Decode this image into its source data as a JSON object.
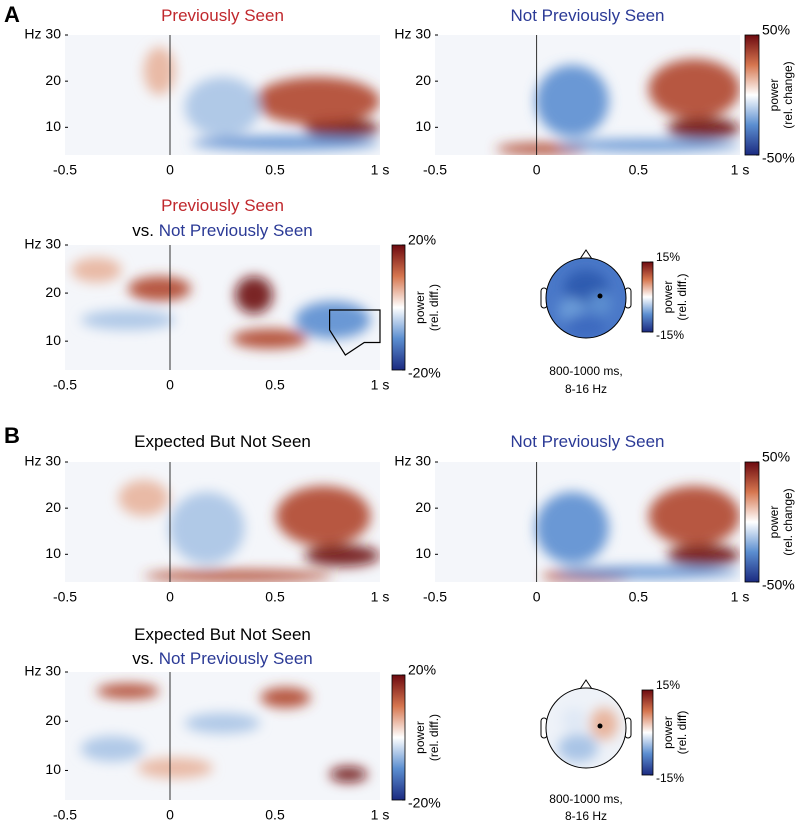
{
  "sections": [
    {
      "label": "A"
    },
    {
      "label": "B"
    }
  ],
  "chart_data": [
    {
      "type": "heatmap",
      "title_lines": [
        [
          {
            "text": "Previously Seen",
            "color": "#c0282d"
          }
        ]
      ],
      "xlim": [
        -0.5,
        1
      ],
      "xticks": [
        -0.5,
        0,
        0.5,
        {
          "value": 1,
          "label": "1 s"
        }
      ],
      "ylim": [
        4,
        30
      ],
      "yticks": [
        10,
        20,
        {
          "value": 30,
          "label": "Hz 30"
        }
      ]
    },
    {
      "type": "heatmap",
      "title_lines": [
        [
          {
            "text": "Not Previously Seen",
            "color": "#2b3a96"
          }
        ]
      ],
      "xlim": [
        -0.5,
        1
      ],
      "xticks": [
        -0.5,
        0,
        0.5,
        {
          "value": 1,
          "label": "1 s"
        }
      ],
      "ylim": [
        4,
        30
      ],
      "yticks": [
        10,
        20,
        {
          "value": 30,
          "label": "Hz 30"
        }
      ],
      "clim": [
        -50,
        50
      ],
      "cticks": [
        {
          "value": -50,
          "label": "-50%"
        },
        {
          "value": 50,
          "label": "50%"
        }
      ],
      "clabel": [
        "power",
        "(rel. change)"
      ]
    },
    {
      "type": "heatmap",
      "title_lines": [
        [
          {
            "text": "Previously Seen",
            "color": "#c0282d"
          }
        ],
        [
          {
            "text": "vs. ",
            "color": "#000000"
          },
          {
            "text": "Not Previously Seen",
            "color": "#2b3a96"
          }
        ]
      ],
      "xlim": [
        -0.5,
        1
      ],
      "xticks": [
        -0.5,
        0,
        0.5,
        {
          "value": 1,
          "label": "1 s"
        }
      ],
      "ylim": [
        4,
        30
      ],
      "yticks": [
        10,
        20,
        {
          "value": 30,
          "label": "Hz 30"
        }
      ],
      "clim": [
        -20,
        20
      ],
      "cticks": [
        {
          "value": -20,
          "label": "-20%"
        },
        {
          "value": 20,
          "label": "20%"
        }
      ],
      "clabel": [
        "power",
        "(rel. diff.)"
      ]
    },
    {
      "type": "topoplot",
      "clim": [
        -15,
        15
      ],
      "cticks": [
        {
          "value": -15,
          "label": "-15%"
        },
        {
          "value": 15,
          "label": "15%"
        }
      ],
      "clabel": [
        "power",
        "(rel. diff.)"
      ],
      "caption": [
        "800-1000 ms,",
        "8-16 Hz"
      ]
    },
    {
      "type": "heatmap",
      "title_lines": [
        [
          {
            "text": "Expected But Not Seen",
            "color": "#000000"
          }
        ]
      ],
      "xlim": [
        -0.5,
        1
      ],
      "xticks": [
        -0.5,
        0,
        0.5,
        {
          "value": 1,
          "label": "1 s"
        }
      ],
      "ylim": [
        4,
        30
      ],
      "yticks": [
        10,
        20,
        {
          "value": 30,
          "label": "Hz 30"
        }
      ]
    },
    {
      "type": "heatmap",
      "title_lines": [
        [
          {
            "text": "Not Previously Seen",
            "color": "#2b3a96"
          }
        ]
      ],
      "xlim": [
        -0.5,
        1
      ],
      "xticks": [
        -0.5,
        0,
        0.5,
        {
          "value": 1,
          "label": "1 s"
        }
      ],
      "ylim": [
        4,
        30
      ],
      "yticks": [
        10,
        20,
        {
          "value": 30,
          "label": "Hz 30"
        }
      ],
      "clim": [
        -50,
        50
      ],
      "cticks": [
        {
          "value": -50,
          "label": "-50%"
        },
        {
          "value": 50,
          "label": "50%"
        }
      ],
      "clabel": [
        "power",
        "(rel. change)"
      ]
    },
    {
      "type": "heatmap",
      "title_lines": [
        [
          {
            "text": "Expected But Not Seen",
            "color": "#000000"
          }
        ],
        [
          {
            "text": "vs. ",
            "color": "#000000"
          },
          {
            "text": "Not Previously Seen",
            "color": "#2b3a96"
          }
        ]
      ],
      "xlim": [
        -0.5,
        1
      ],
      "xticks": [
        -0.5,
        0,
        0.5,
        {
          "value": 1,
          "label": "1 s"
        }
      ],
      "ylim": [
        4,
        30
      ],
      "yticks": [
        10,
        20,
        {
          "value": 30,
          "label": "Hz 30"
        }
      ],
      "clim": [
        -20,
        20
      ],
      "cticks": [
        {
          "value": -20,
          "label": "-20%"
        },
        {
          "value": 20,
          "label": "20%"
        }
      ],
      "clabel": [
        "power",
        "(rel. diff.)"
      ]
    },
    {
      "type": "topoplot",
      "clim": [
        -15,
        15
      ],
      "cticks": [
        {
          "value": -15,
          "label": "-15%"
        },
        {
          "value": 15,
          "label": "15%"
        }
      ],
      "clabel": [
        "power",
        "(rel. diff)"
      ],
      "caption": [
        "800-1000 ms,",
        "8-16 Hz"
      ]
    }
  ]
}
